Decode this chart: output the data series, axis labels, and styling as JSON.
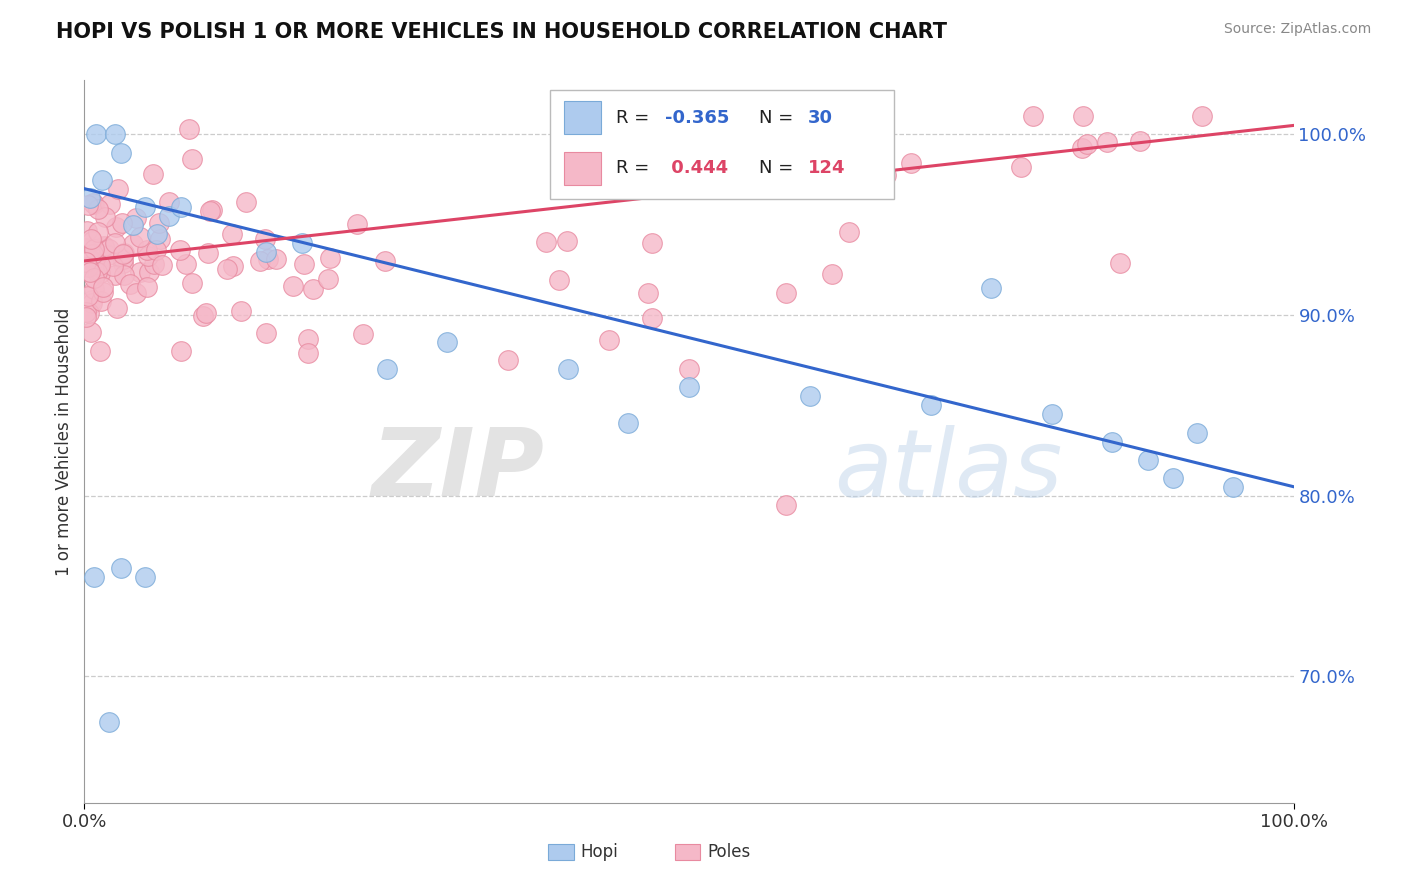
{
  "title": "HOPI VS POLISH 1 OR MORE VEHICLES IN HOUSEHOLD CORRELATION CHART",
  "source": "Source: ZipAtlas.com",
  "ylabel": "1 or more Vehicles in Household",
  "xlim": [
    0.0,
    100.0
  ],
  "ylim": [
    63.0,
    103.0
  ],
  "yticks": [
    70.0,
    80.0,
    90.0,
    100.0
  ],
  "hopi_color": "#aecbee",
  "poles_color": "#f5b8c8",
  "hopi_edge": "#7aaad8",
  "poles_edge": "#e88aa0",
  "trend_hopi_color": "#3366cc",
  "trend_poles_color": "#dd4466",
  "R_hopi": -0.365,
  "N_hopi": 30,
  "R_poles": 0.444,
  "N_poles": 124,
  "background_color": "#ffffff",
  "grid_color": "#cccccc",
  "watermark_zip": "ZIP",
  "watermark_atlas": "atlas",
  "hopi_trend_start_y": 97.0,
  "hopi_trend_end_y": 80.5,
  "poles_trend_start_y": 93.0,
  "poles_trend_end_y": 100.5
}
